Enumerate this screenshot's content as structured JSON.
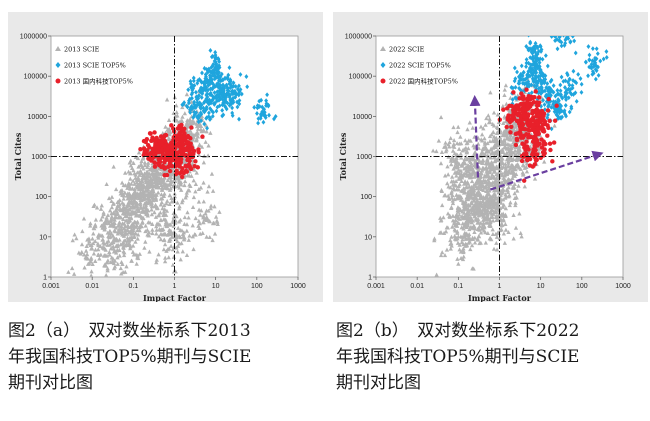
{
  "chart_data": [
    {
      "type": "scatter",
      "xlabel": "Impact Factor",
      "ylabel": "Total Cites",
      "x_scale": "log",
      "y_scale": "log",
      "xlim": [
        0.001,
        1000
      ],
      "ylim": [
        1,
        1000000
      ],
      "x_ticks": [
        "0.001",
        "0.01",
        "0.1",
        "1",
        "10",
        "100",
        "1000"
      ],
      "y_ticks": [
        "1",
        "10",
        "100",
        "1000",
        "10000",
        "100000",
        "1000000"
      ],
      "reference_lines": {
        "x": 1,
        "y": 1000
      },
      "legend_position": "top-left",
      "series": [
        {
          "name": "2013 SCIE",
          "color": "#b3b3b3",
          "marker": "triangle",
          "points": [
            [
              0.05,
              30
            ],
            [
              0.08,
              60
            ],
            [
              0.1,
              100
            ],
            [
              0.15,
              150
            ],
            [
              0.2,
              250
            ],
            [
              0.3,
              350
            ],
            [
              0.5,
              600
            ],
            [
              0.7,
              900
            ],
            [
              1,
              1500
            ],
            [
              1.5,
              2500
            ],
            [
              2,
              4000
            ],
            [
              3,
              7000
            ],
            [
              0.1,
              20
            ],
            [
              0.2,
              40
            ],
            [
              0.3,
              80
            ],
            [
              0.5,
              150
            ],
            [
              1,
              300
            ],
            [
              2,
              600
            ],
            [
              0.06,
              8
            ],
            [
              0.8,
              20
            ],
            [
              1,
              10
            ],
            [
              5,
              30
            ],
            [
              0.03,
              3
            ],
            [
              0.01,
              5
            ],
            [
              0.02,
              15
            ]
          ]
        },
        {
          "name": "2013 SCIE TOP5%",
          "color": "#1fa5dd",
          "marker": "diamond",
          "points": [
            [
              3,
              20000
            ],
            [
              5,
              50000
            ],
            [
              8,
              100000
            ],
            [
              10,
              200000
            ],
            [
              15,
              80000
            ],
            [
              20,
              40000
            ],
            [
              30,
              30000
            ],
            [
              6,
              15000
            ],
            [
              12,
              25000
            ],
            [
              150,
              15000
            ]
          ]
        },
        {
          "name": "2013 国内科技TOP5%",
          "color": "#e8202a",
          "marker": "circle",
          "points": [
            [
              0.3,
              1500
            ],
            [
              0.5,
              2000
            ],
            [
              0.8,
              1200
            ],
            [
              1,
              1800
            ],
            [
              1.5,
              3000
            ],
            [
              2,
              1000
            ],
            [
              0.6,
              900
            ],
            [
              1.2,
              700
            ],
            [
              0.4,
              1300
            ],
            [
              2.5,
              1500
            ]
          ]
        }
      ]
    },
    {
      "type": "scatter",
      "xlabel": "Impact Factor",
      "ylabel": "Total Cites",
      "x_scale": "log",
      "y_scale": "log",
      "xlim": [
        0.001,
        1000
      ],
      "ylim": [
        1,
        1000000
      ],
      "x_ticks": [
        "0.001",
        "0.01",
        "0.1",
        "1",
        "10",
        "100",
        "1000"
      ],
      "y_ticks": [
        "1",
        "10",
        "100",
        "1000",
        "10000",
        "100000",
        "1000000"
      ],
      "reference_lines": {
        "x": 1,
        "y": 1000
      },
      "legend_position": "top-left",
      "series": [
        {
          "name": "2022 SCIE",
          "color": "#b3b3b3",
          "marker": "triangle",
          "points": [
            [
              0.1,
              10
            ],
            [
              0.1,
              100
            ],
            [
              0.1,
              1000
            ],
            [
              0.2,
              30
            ],
            [
              0.2,
              300
            ],
            [
              0.3,
              500
            ],
            [
              0.5,
              800
            ],
            [
              1,
              2000
            ],
            [
              2,
              5000
            ],
            [
              3,
              10000
            ],
            [
              1,
              300
            ],
            [
              2,
              800
            ],
            [
              0.5,
              60
            ],
            [
              1,
              100
            ],
            [
              5,
              3000
            ],
            [
              0.3,
              40
            ],
            [
              0.7,
              25
            ]
          ]
        },
        {
          "name": "2022 SCIE TOP5%",
          "color": "#1fa5dd",
          "marker": "diamond",
          "points": [
            [
              3,
              50000
            ],
            [
              5,
              100000
            ],
            [
              8,
              200000
            ],
            [
              10,
              80000
            ],
            [
              15,
              30000
            ],
            [
              20,
              20000
            ],
            [
              30,
              15000
            ],
            [
              50,
              60000
            ],
            [
              6,
              400000
            ],
            [
              40,
              800000
            ],
            [
              200,
              200000
            ]
          ]
        },
        {
          "name": "2022 国内科技TOP5%",
          "color": "#e8202a",
          "marker": "circle",
          "points": [
            [
              2,
              8000
            ],
            [
              3,
              15000
            ],
            [
              4,
              10000
            ],
            [
              5,
              6000
            ],
            [
              6,
              20000
            ],
            [
              8,
              4000
            ],
            [
              10,
              8000
            ],
            [
              12,
              2000
            ],
            [
              7,
              1000
            ],
            [
              5,
              3000
            ]
          ]
        }
      ],
      "annotations": [
        {
          "type": "arrow",
          "from": [
            0.3,
            300
          ],
          "to": [
            0.25,
            30000
          ],
          "color": "#6a3fa0"
        },
        {
          "type": "arrow",
          "from": [
            0.6,
            150
          ],
          "to": [
            300,
            1200
          ],
          "color": "#6a3fa0"
        }
      ]
    }
  ],
  "captions": [
    {
      "line1": "图2（a）　双对数坐标系下2013",
      "line2": "年我国科技TOP5%期刊与SCIE",
      "line3": "期刊对比图"
    },
    {
      "line1": "图2（b）　双对数坐标系下2022",
      "line2": "年我国科技TOP5%期刊与SCIE",
      "line3": "期刊对比图"
    }
  ]
}
